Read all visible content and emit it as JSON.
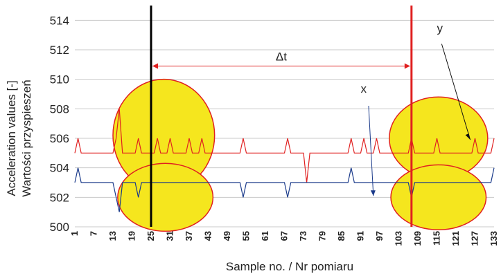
{
  "chart_data": {
    "type": "line",
    "title": "",
    "xlabel": "Sample no. / Nr pomiaru",
    "ylabel_line1": "Acceleration values [-]",
    "ylabel_line2": "Wartości przyspieszeń",
    "ylim": [
      500,
      515
    ],
    "xlim": [
      1,
      133
    ],
    "y_ticks": [
      500,
      502,
      504,
      506,
      508,
      510,
      512,
      514
    ],
    "x_ticks": [
      1,
      7,
      13,
      19,
      25,
      31,
      37,
      43,
      49,
      55,
      61,
      67,
      73,
      79,
      85,
      91,
      97,
      103,
      109,
      115,
      121,
      127,
      133
    ],
    "grid": "horizontal",
    "vertical_markers": [
      {
        "x": 25,
        "color": "#000000"
      },
      {
        "x": 107,
        "color": "#e02020"
      }
    ],
    "interval_label": "Δt",
    "annotations": [
      "y",
      "x"
    ],
    "highlight_color": "#f5e61e",
    "highlight_stroke": "#e02020",
    "series": [
      {
        "name": "y",
        "color": "#e02020",
        "values": [
          505,
          506,
          505,
          505,
          505,
          505,
          505,
          505,
          505,
          505,
          505,
          505,
          505,
          506,
          508,
          505,
          505,
          505,
          505,
          505,
          506,
          505,
          505,
          505,
          505,
          505,
          506,
          505,
          505,
          505,
          506,
          505,
          505,
          505,
          505,
          505,
          506,
          505,
          505,
          505,
          506,
          505,
          505,
          505,
          505,
          505,
          505,
          505,
          505,
          505,
          505,
          505,
          505,
          506,
          505,
          505,
          505,
          505,
          505,
          505,
          505,
          505,
          505,
          505,
          505,
          505,
          505,
          506,
          505,
          505,
          505,
          505,
          505,
          503,
          505,
          505,
          505,
          505,
          505,
          505,
          505,
          505,
          505,
          505,
          505,
          505,
          505,
          506,
          505,
          505,
          505,
          506,
          505,
          505,
          505,
          506,
          505,
          505,
          505,
          505,
          505,
          505,
          505,
          505,
          505,
          505,
          506,
          505,
          505,
          505,
          505,
          505,
          505,
          505,
          506,
          505,
          505,
          505,
          505,
          505,
          505,
          505,
          505,
          505,
          505,
          505,
          506,
          505,
          505,
          505,
          505,
          505,
          506
        ]
      },
      {
        "name": "x",
        "color": "#1a3a8a",
        "values": [
          503,
          504,
          503,
          503,
          503,
          503,
          503,
          503,
          503,
          503,
          503,
          503,
          503,
          502,
          501,
          503,
          503,
          503,
          503,
          503,
          502,
          503,
          503,
          503,
          503,
          503,
          503,
          503,
          503,
          503,
          503,
          503,
          503,
          503,
          503,
          503,
          503,
          503,
          503,
          503,
          503,
          503,
          503,
          503,
          503,
          503,
          503,
          503,
          503,
          503,
          503,
          503,
          503,
          502,
          503,
          503,
          503,
          503,
          503,
          503,
          503,
          503,
          503,
          503,
          503,
          503,
          503,
          502,
          503,
          503,
          503,
          503,
          503,
          503,
          503,
          503,
          503,
          503,
          503,
          503,
          503,
          503,
          503,
          503,
          503,
          503,
          503,
          504,
          503,
          503,
          503,
          503,
          503,
          503,
          503,
          503,
          503,
          503,
          503,
          503,
          503,
          503,
          503,
          503,
          503,
          503,
          502,
          503,
          503,
          503,
          503,
          503,
          503,
          503,
          503,
          503,
          503,
          503,
          503,
          503,
          503,
          503,
          503,
          503,
          503,
          503,
          503,
          503,
          503,
          503,
          503,
          503,
          504
        ]
      }
    ]
  }
}
